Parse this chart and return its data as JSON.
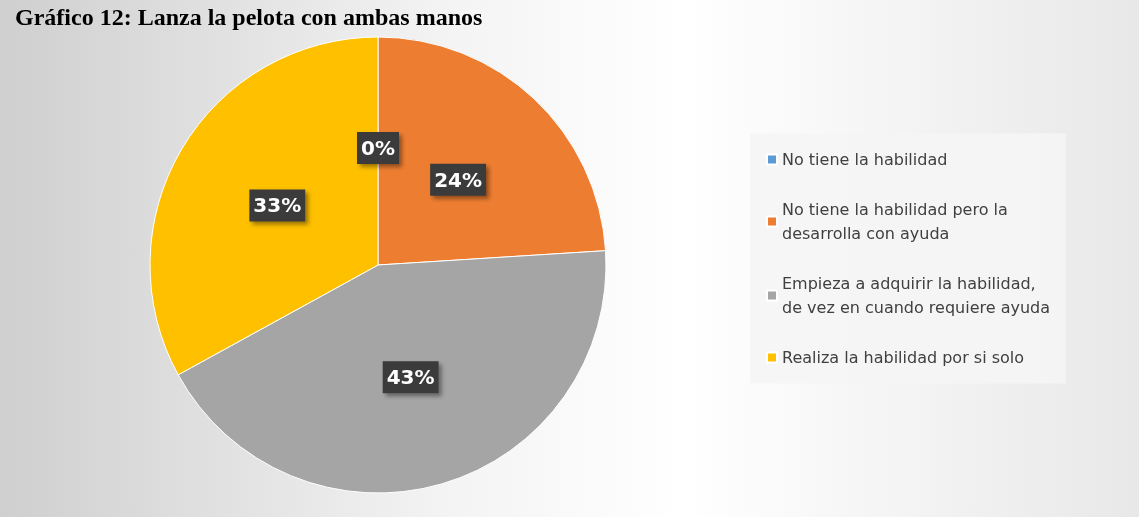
{
  "chart_data": {
    "type": "pie",
    "title": "Gráfico 12: Lanza la pelota con ambas manos",
    "categories": [
      "No tiene la habilidad",
      "No tiene la habilidad pero la desarrolla con ayuda",
      "Empieza a adquirir la habilidad, de vez en cuando requiere ayuda",
      "Realiza la habilidad por si solo"
    ],
    "values": [
      0,
      24,
      43,
      33
    ],
    "colors": [
      "#5b9bd5",
      "#ed7d31",
      "#a5a5a5",
      "#ffc000"
    ],
    "value_labels": [
      "0%",
      "24%",
      "43%",
      "33%"
    ],
    "legend": "right"
  }
}
